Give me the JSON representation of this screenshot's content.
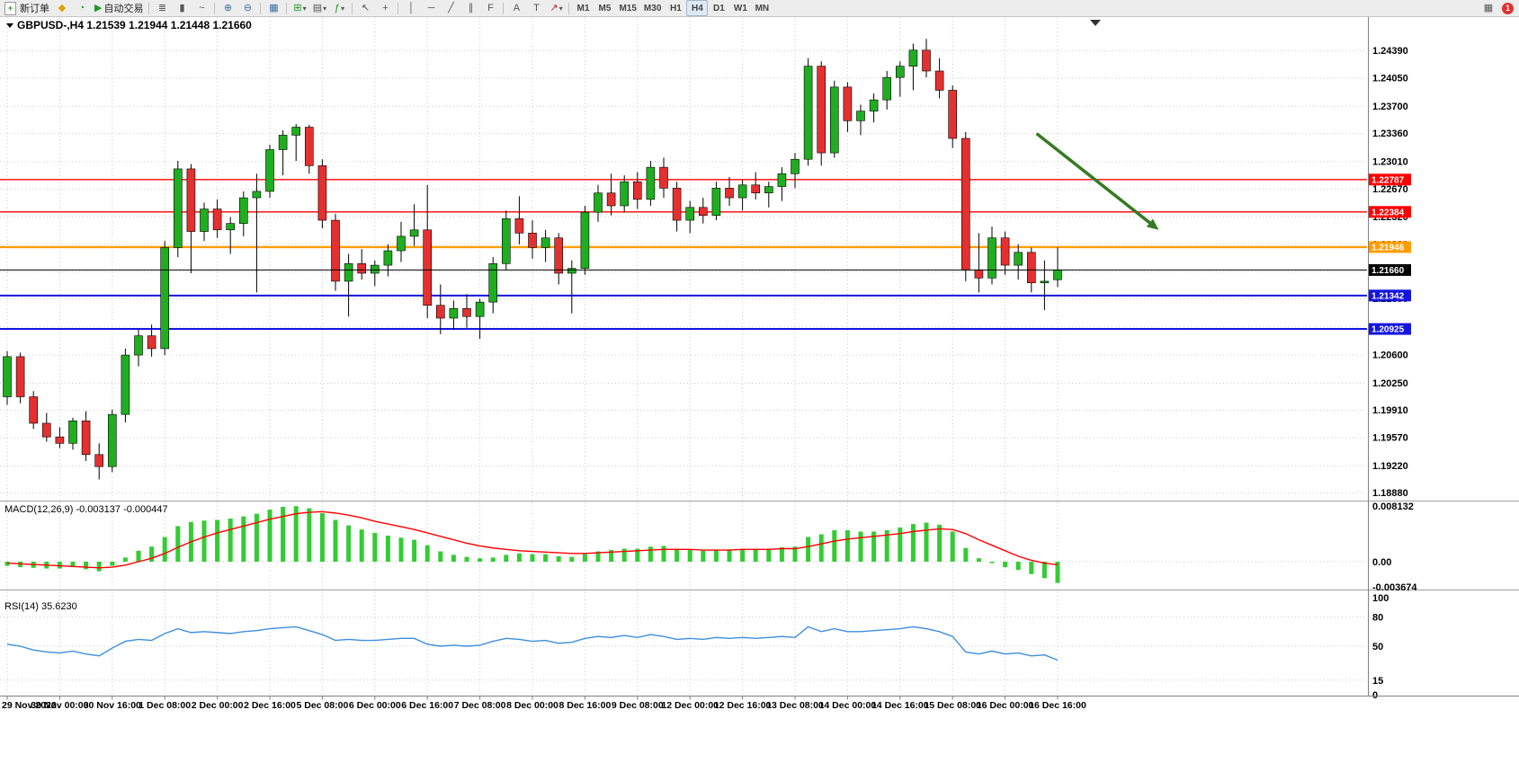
{
  "toolbar": {
    "new_order_label": "新订单",
    "autotrading_label": "自动交易",
    "timeframes": [
      "M1",
      "M5",
      "M15",
      "M30",
      "H1",
      "H4",
      "D1",
      "W1",
      "MN"
    ],
    "active_timeframe": "H4",
    "notification_count": "1"
  },
  "icons": {
    "new_order": "+",
    "compass": "◆",
    "clock": "◔",
    "play": "▶",
    "bar_chart": "≣",
    "candle_chart": "▮",
    "line_chart": "~",
    "zoom_in": "⊕",
    "zoom_out": "⊖",
    "tile_windows": "▦",
    "new_chart": "⊞",
    "profiles": "▤",
    "indicators": "ƒ",
    "dropdown": "▾",
    "cursor": "↖",
    "crosshair": "+",
    "vertical_line": "│",
    "horizontal_line": "─",
    "trendline": "╱",
    "channel": "∥",
    "fibonacci": "F",
    "text_tool": "A",
    "label_tool": "T",
    "chart_mini": "▦"
  },
  "chart_data": {
    "type": "candlestick",
    "symbol": "GBPUSD-",
    "timeframe": "H4",
    "header": "GBPUSD-,H4 1.21539 1.21944 1.21448 1.21660",
    "ohlc_current": {
      "open": "1.21539",
      "high": "1.21944",
      "low": "1.21448",
      "close": "1.21660"
    },
    "colors": {
      "up": "#1fae1f",
      "down": "#e53030",
      "wick": "#000000",
      "grid": "#c9c9c9",
      "hist": "#33cc33",
      "signal": "#ff0000",
      "rsi": "#3e8ede",
      "arrow": "#357b21",
      "axis_line": "#808080"
    },
    "price_axis": {
      "min": 1.1882,
      "max": 1.247,
      "ticks": [
        "1.24390",
        "1.24050",
        "1.23700",
        "1.23360",
        "1.23010",
        "1.22670",
        "1.22320",
        "1.21980",
        "1.21640",
        "1.21300",
        "1.20950",
        "1.20600",
        "1.20250",
        "1.19910",
        "1.19570",
        "1.19220",
        "1.18880"
      ]
    },
    "x_labels": [
      "29 Nov 2022",
      "30 Nov 00:00",
      "30 Nov 16:00",
      "1 Dec 08:00",
      "2 Dec 00:00",
      "2 Dec 16:00",
      "5 Dec 08:00",
      "6 Dec 00:00",
      "6 Dec 16:00",
      "7 Dec 08:00",
      "8 Dec 00:00",
      "8 Dec 16:00",
      "9 Dec 08:00",
      "12 Dec 00:00",
      "12 Dec 16:00",
      "13 Dec 08:00",
      "14 Dec 00:00",
      "14 Dec 16:00",
      "15 Dec 08:00",
      "16 Dec 00:00",
      "16 Dec 16:00"
    ],
    "label_every": 4,
    "candles": [
      [
        1.2008,
        1.2065,
        1.1998,
        1.2058
      ],
      [
        1.2058,
        1.2063,
        1.2,
        1.2008
      ],
      [
        1.2008,
        1.2015,
        1.1968,
        1.1975
      ],
      [
        1.1975,
        1.1988,
        1.1952,
        1.1958
      ],
      [
        1.1958,
        1.197,
        1.1944,
        1.195
      ],
      [
        1.195,
        1.1982,
        1.1942,
        1.1978
      ],
      [
        1.1978,
        1.199,
        1.1928,
        1.1936
      ],
      [
        1.1936,
        1.195,
        1.1905,
        1.1921
      ],
      [
        1.1921,
        1.1992,
        1.1914,
        1.1986
      ],
      [
        1.1986,
        1.2068,
        1.1976,
        1.206
      ],
      [
        1.206,
        1.2092,
        1.2046,
        1.2084
      ],
      [
        1.2084,
        1.2098,
        1.2058,
        1.2068
      ],
      [
        1.2068,
        1.2202,
        1.206,
        1.2194
      ],
      [
        1.2194,
        1.2302,
        1.2182,
        1.2292
      ],
      [
        1.2292,
        1.2298,
        1.2162,
        1.2214
      ],
      [
        1.2214,
        1.225,
        1.2202,
        1.2242
      ],
      [
        1.2242,
        1.2254,
        1.2206,
        1.2216
      ],
      [
        1.2216,
        1.2232,
        1.2186,
        1.2224
      ],
      [
        1.2224,
        1.2264,
        1.2208,
        1.2256
      ],
      [
        1.2256,
        1.2286,
        1.2138,
        1.2264
      ],
      [
        1.2264,
        1.2322,
        1.2256,
        1.2316
      ],
      [
        1.2316,
        1.234,
        1.2284,
        1.2334
      ],
      [
        1.2334,
        1.2348,
        1.2302,
        1.2344
      ],
      [
        1.2344,
        1.2347,
        1.2286,
        1.2296
      ],
      [
        1.2296,
        1.2304,
        1.2218,
        1.2228
      ],
      [
        1.2228,
        1.2236,
        1.214,
        1.2152
      ],
      [
        1.2152,
        1.2186,
        1.2108,
        1.2174
      ],
      [
        1.2174,
        1.2192,
        1.2154,
        1.2162
      ],
      [
        1.2162,
        1.2178,
        1.2146,
        1.2172
      ],
      [
        1.2172,
        1.2198,
        1.2158,
        1.219
      ],
      [
        1.219,
        1.2226,
        1.2176,
        1.2208
      ],
      [
        1.2208,
        1.2248,
        1.2196,
        1.2216
      ],
      [
        1.2216,
        1.2272,
        1.2106,
        1.2122
      ],
      [
        1.2122,
        1.2148,
        1.2086,
        1.2106
      ],
      [
        1.2106,
        1.2128,
        1.2092,
        1.2118
      ],
      [
        1.2118,
        1.2136,
        1.2094,
        1.2108
      ],
      [
        1.2108,
        1.213,
        1.208,
        1.2126
      ],
      [
        1.2126,
        1.2182,
        1.2112,
        1.2174
      ],
      [
        1.2174,
        1.224,
        1.2166,
        1.223
      ],
      [
        1.223,
        1.2258,
        1.2198,
        1.2212
      ],
      [
        1.2212,
        1.2228,
        1.218,
        1.2194
      ],
      [
        1.2194,
        1.2216,
        1.2176,
        1.2206
      ],
      [
        1.2206,
        1.2212,
        1.2148,
        1.2162
      ],
      [
        1.2162,
        1.2178,
        1.2112,
        1.2168
      ],
      [
        1.2168,
        1.2246,
        1.216,
        1.2238
      ],
      [
        1.2238,
        1.2272,
        1.2226,
        1.2262
      ],
      [
        1.2262,
        1.2286,
        1.2234,
        1.2246
      ],
      [
        1.2246,
        1.2284,
        1.2238,
        1.2276
      ],
      [
        1.2276,
        1.2288,
        1.2242,
        1.2254
      ],
      [
        1.2254,
        1.2302,
        1.2246,
        1.2294
      ],
      [
        1.2294,
        1.2306,
        1.2256,
        1.2268
      ],
      [
        1.2268,
        1.2276,
        1.2214,
        1.2228
      ],
      [
        1.2228,
        1.2252,
        1.2212,
        1.2244
      ],
      [
        1.2244,
        1.2256,
        1.2224,
        1.2234
      ],
      [
        1.2234,
        1.2276,
        1.2228,
        1.2268
      ],
      [
        1.2268,
        1.2282,
        1.2246,
        1.2256
      ],
      [
        1.2256,
        1.2278,
        1.224,
        1.2272
      ],
      [
        1.2272,
        1.2288,
        1.2254,
        1.2262
      ],
      [
        1.2262,
        1.2276,
        1.2244,
        1.227
      ],
      [
        1.227,
        1.2294,
        1.2252,
        1.2286
      ],
      [
        1.2286,
        1.2312,
        1.2268,
        1.2304
      ],
      [
        1.2304,
        1.243,
        1.2296,
        1.242
      ],
      [
        1.242,
        1.2426,
        1.2296,
        1.2312
      ],
      [
        1.2312,
        1.2402,
        1.2306,
        1.2394
      ],
      [
        1.2394,
        1.24,
        1.2338,
        1.2352
      ],
      [
        1.2352,
        1.2372,
        1.2334,
        1.2364
      ],
      [
        1.2364,
        1.2386,
        1.235,
        1.2378
      ],
      [
        1.2378,
        1.2414,
        1.2366,
        1.2406
      ],
      [
        1.2406,
        1.2426,
        1.2382,
        1.242
      ],
      [
        1.242,
        1.2448,
        1.239,
        1.244
      ],
      [
        1.244,
        1.2454,
        1.2406,
        1.2414
      ],
      [
        1.2414,
        1.243,
        1.238,
        1.239
      ],
      [
        1.239,
        1.2396,
        1.2318,
        1.233
      ],
      [
        1.233,
        1.2338,
        1.2152,
        1.2166
      ],
      [
        1.2166,
        1.2212,
        1.2138,
        1.2156
      ],
      [
        1.2156,
        1.222,
        1.2148,
        1.2206
      ],
      [
        1.2206,
        1.2214,
        1.216,
        1.2172
      ],
      [
        1.2172,
        1.2198,
        1.2154,
        1.2188
      ],
      [
        1.2188,
        1.2194,
        1.2138,
        1.215
      ],
      [
        1.215,
        1.2178,
        1.2116,
        1.2152
      ],
      [
        1.21539,
        1.21944,
        1.21448,
        1.2166
      ]
    ],
    "hlines": [
      {
        "price": 1.22787,
        "label": "1.22787",
        "color": "#ff0000",
        "width": 1.4
      },
      {
        "price": 1.22384,
        "label": "1.22384",
        "color": "#ff0000",
        "width": 1.4
      },
      {
        "price": 1.21946,
        "label": "1.21946",
        "color": "#ff9d00",
        "width": 2.4
      },
      {
        "price": 1.21342,
        "label": "1.21342",
        "color": "#1515dd",
        "width": 2
      },
      {
        "price": 1.20925,
        "label": "1.20925",
        "color": "#1515dd",
        "width": 2
      }
    ],
    "current_price": {
      "price": 1.2166,
      "label": "1.21660",
      "color": "#000000"
    },
    "trend_arrow": {
      "from_bar": 78.4,
      "from_price": 1.2336,
      "to_bar": 87.7,
      "to_price": 1.2216
    },
    "macd": {
      "label": "MACD(12,26,9) -0.003137 -0.000447",
      "max": 0.008132,
      "min": -0.003674,
      "axis": [
        "0.008132",
        "0.00",
        "-0.003674"
      ],
      "histogram": [
        -0.0006,
        -0.0008,
        -0.0009,
        -0.001,
        -0.001,
        -0.0008,
        -0.0011,
        -0.0014,
        -0.0006,
        0.0006,
        0.0016,
        0.0022,
        0.0036,
        0.0052,
        0.0058,
        0.006,
        0.0061,
        0.0063,
        0.0066,
        0.007,
        0.0076,
        0.008,
        0.0081,
        0.0078,
        0.0071,
        0.0061,
        0.0053,
        0.0047,
        0.0042,
        0.0038,
        0.0035,
        0.0032,
        0.0024,
        0.0015,
        0.001,
        0.0007,
        0.0005,
        0.0006,
        0.001,
        0.0012,
        0.0011,
        0.0011,
        0.0008,
        0.0007,
        0.0011,
        0.0015,
        0.0017,
        0.0019,
        0.0019,
        0.0022,
        0.0023,
        0.0019,
        0.0017,
        0.0016,
        0.0017,
        0.0018,
        0.0019,
        0.0019,
        0.0019,
        0.0021,
        0.0022,
        0.0036,
        0.004,
        0.0046,
        0.0046,
        0.0044,
        0.0044,
        0.0046,
        0.005,
        0.0055,
        0.0057,
        0.0054,
        0.0044,
        0.002,
        0.0005,
        -0.0002,
        -0.0008,
        -0.0012,
        -0.0018,
        -0.0024,
        -0.0031
      ],
      "signal": [
        -0.0002,
        -0.0003,
        -0.0004,
        -0.0005,
        -0.0006,
        -0.0007,
        -0.0008,
        -0.0009,
        -0.0008,
        -0.0005,
        0.0,
        0.0005,
        0.0012,
        0.0021,
        0.0029,
        0.0036,
        0.0042,
        0.0047,
        0.0052,
        0.0057,
        0.0062,
        0.0066,
        0.007,
        0.0072,
        0.0073,
        0.0071,
        0.0068,
        0.0064,
        0.0059,
        0.0055,
        0.0051,
        0.0047,
        0.0042,
        0.0037,
        0.0032,
        0.0027,
        0.0023,
        0.002,
        0.0018,
        0.0016,
        0.0015,
        0.0014,
        0.0013,
        0.0012,
        0.0012,
        0.0013,
        0.0014,
        0.0015,
        0.0016,
        0.0017,
        0.0018,
        0.0018,
        0.0018,
        0.0017,
        0.0017,
        0.0017,
        0.0018,
        0.0018,
        0.0018,
        0.0019,
        0.0019,
        0.0022,
        0.0026,
        0.003,
        0.0033,
        0.0035,
        0.0037,
        0.0039,
        0.0041,
        0.0044,
        0.0046,
        0.0048,
        0.0047,
        0.0041,
        0.0032,
        0.0024,
        0.0016,
        0.0008,
        0.0002,
        -0.0002,
        -0.00045
      ]
    },
    "rsi": {
      "label": "RSI(14) 35.6230",
      "axis": [
        "100",
        "80",
        "50",
        "15",
        "0"
      ],
      "axis_values": [
        100,
        80,
        50,
        15,
        0
      ],
      "levels": [
        80,
        50,
        15
      ],
      "values": [
        52,
        50,
        46,
        44,
        43,
        45,
        42,
        40,
        48,
        55,
        57,
        56,
        63,
        68,
        64,
        65,
        64,
        63,
        65,
        66,
        68,
        69,
        70,
        66,
        62,
        56,
        57,
        56,
        56,
        57,
        58,
        58,
        52,
        50,
        51,
        50,
        51,
        55,
        58,
        57,
        55,
        56,
        53,
        54,
        58,
        60,
        59,
        61,
        59,
        62,
        60,
        57,
        58,
        57,
        59,
        58,
        59,
        58,
        59,
        60,
        59,
        70,
        65,
        68,
        65,
        65,
        66,
        67,
        68,
        70,
        68,
        65,
        60,
        44,
        42,
        45,
        42,
        43,
        40,
        41,
        35.62
      ]
    }
  }
}
